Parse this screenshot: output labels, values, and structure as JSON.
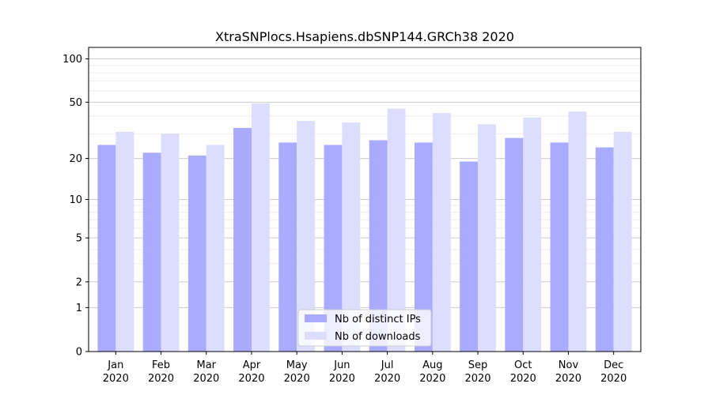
{
  "chart_data": {
    "type": "bar",
    "title": "XtraSNPlocs.Hsapiens.dbSNP144.GRCh38 2020",
    "xlabel": "",
    "ylabel": "",
    "yscale": "log(1+y)",
    "ylim": [
      0,
      120
    ],
    "yticks": [
      0,
      1,
      2,
      5,
      10,
      20,
      50,
      100
    ],
    "categories": [
      [
        "Jan",
        "2020"
      ],
      [
        "Feb",
        "2020"
      ],
      [
        "Mar",
        "2020"
      ],
      [
        "Apr",
        "2020"
      ],
      [
        "May",
        "2020"
      ],
      [
        "Jun",
        "2020"
      ],
      [
        "Jul",
        "2020"
      ],
      [
        "Aug",
        "2020"
      ],
      [
        "Sep",
        "2020"
      ],
      [
        "Oct",
        "2020"
      ],
      [
        "Nov",
        "2020"
      ],
      [
        "Dec",
        "2020"
      ]
    ],
    "series": [
      {
        "name": "Nb of distinct IPs",
        "color": "#aaaaff",
        "values": [
          25,
          22,
          21,
          33,
          26,
          25,
          27,
          26,
          19,
          28,
          26,
          24
        ]
      },
      {
        "name": "Nb of downloads",
        "color": "#ddddff",
        "values": [
          31,
          30,
          25,
          49,
          37,
          36,
          45,
          42,
          35,
          39,
          43,
          31
        ]
      }
    ],
    "grid": true,
    "legend": "lower-center"
  }
}
